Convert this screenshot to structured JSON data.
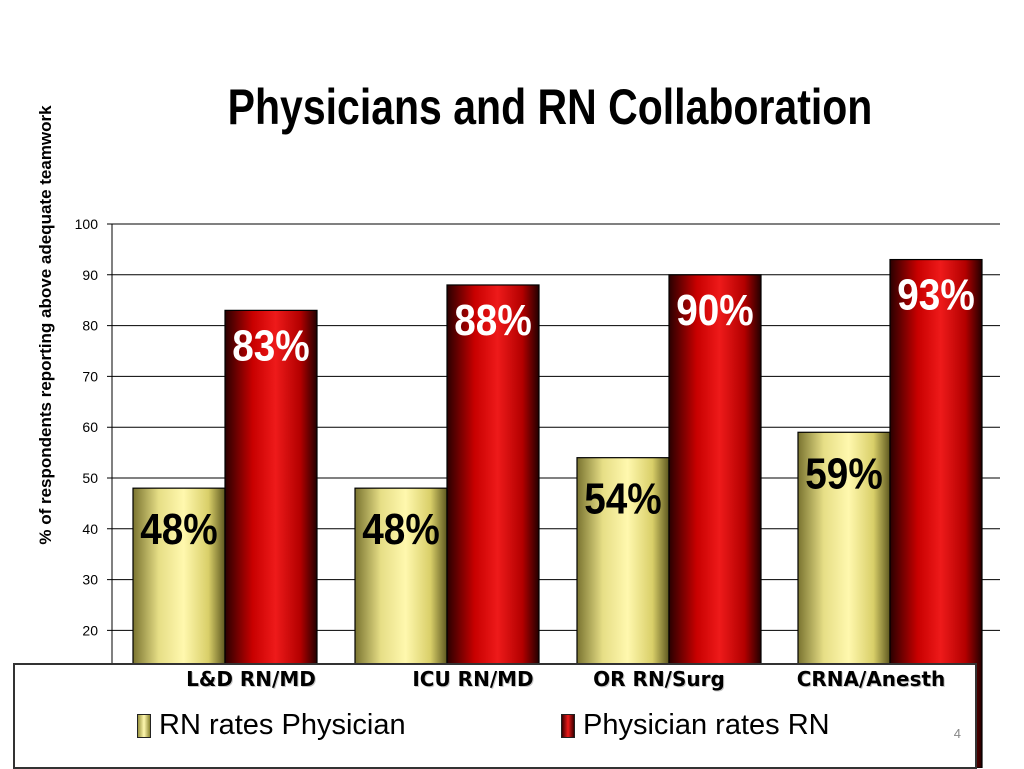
{
  "title": "Physicians and RN Collaboration",
  "page_number": "4",
  "colors": {
    "rn_rates_physician": "#f3e878",
    "physician_rates_rn": "#cc0000"
  },
  "chart_data": {
    "type": "bar",
    "title": "Physicians and RN Collaboration",
    "ylabel": "% of respondents reporting above adequate teamwork",
    "xlabel": "",
    "ylim": [
      0,
      100
    ],
    "yticks": [
      20,
      30,
      40,
      50,
      60,
      70,
      80,
      90,
      100
    ],
    "grid": true,
    "legend_position": "bottom",
    "categories": [
      "L&D RN/MD",
      "ICU RN/MD",
      "OR RN/Surg",
      "CRNA/Anesth"
    ],
    "series": [
      {
        "name": "RN rates Physician",
        "values": [
          48,
          48,
          54,
          59
        ],
        "labels": [
          "48%",
          "48%",
          "54%",
          "59%"
        ]
      },
      {
        "name": "Physician rates RN",
        "values": [
          83,
          88,
          90,
          93
        ],
        "labels": [
          "83%",
          "88%",
          "90%",
          "93%"
        ]
      }
    ]
  }
}
